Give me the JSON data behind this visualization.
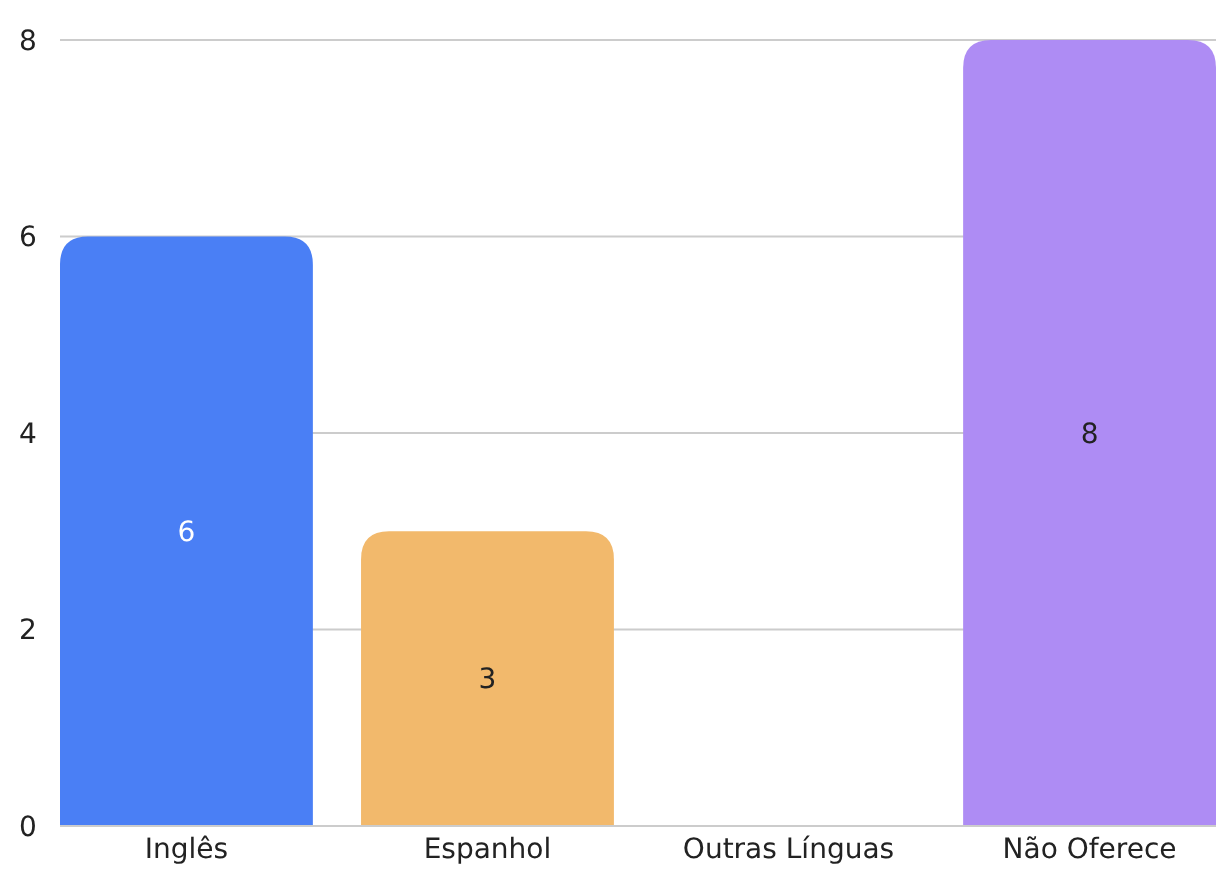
{
  "chart_data": {
    "type": "bar",
    "categories": [
      "Inglês",
      "Espanhol",
      "Outras Línguas",
      "Não Oferece"
    ],
    "values": [
      6,
      3,
      0,
      8
    ],
    "colors": [
      "#4a7ff5",
      "#f2b96c",
      "#c9c9c9",
      "#ae8cf4"
    ],
    "value_labels": [
      "6",
      "3",
      null,
      "8"
    ],
    "ylim": [
      0,
      8
    ],
    "yticks": [
      0,
      2,
      4,
      6,
      8
    ],
    "grid": "y"
  }
}
